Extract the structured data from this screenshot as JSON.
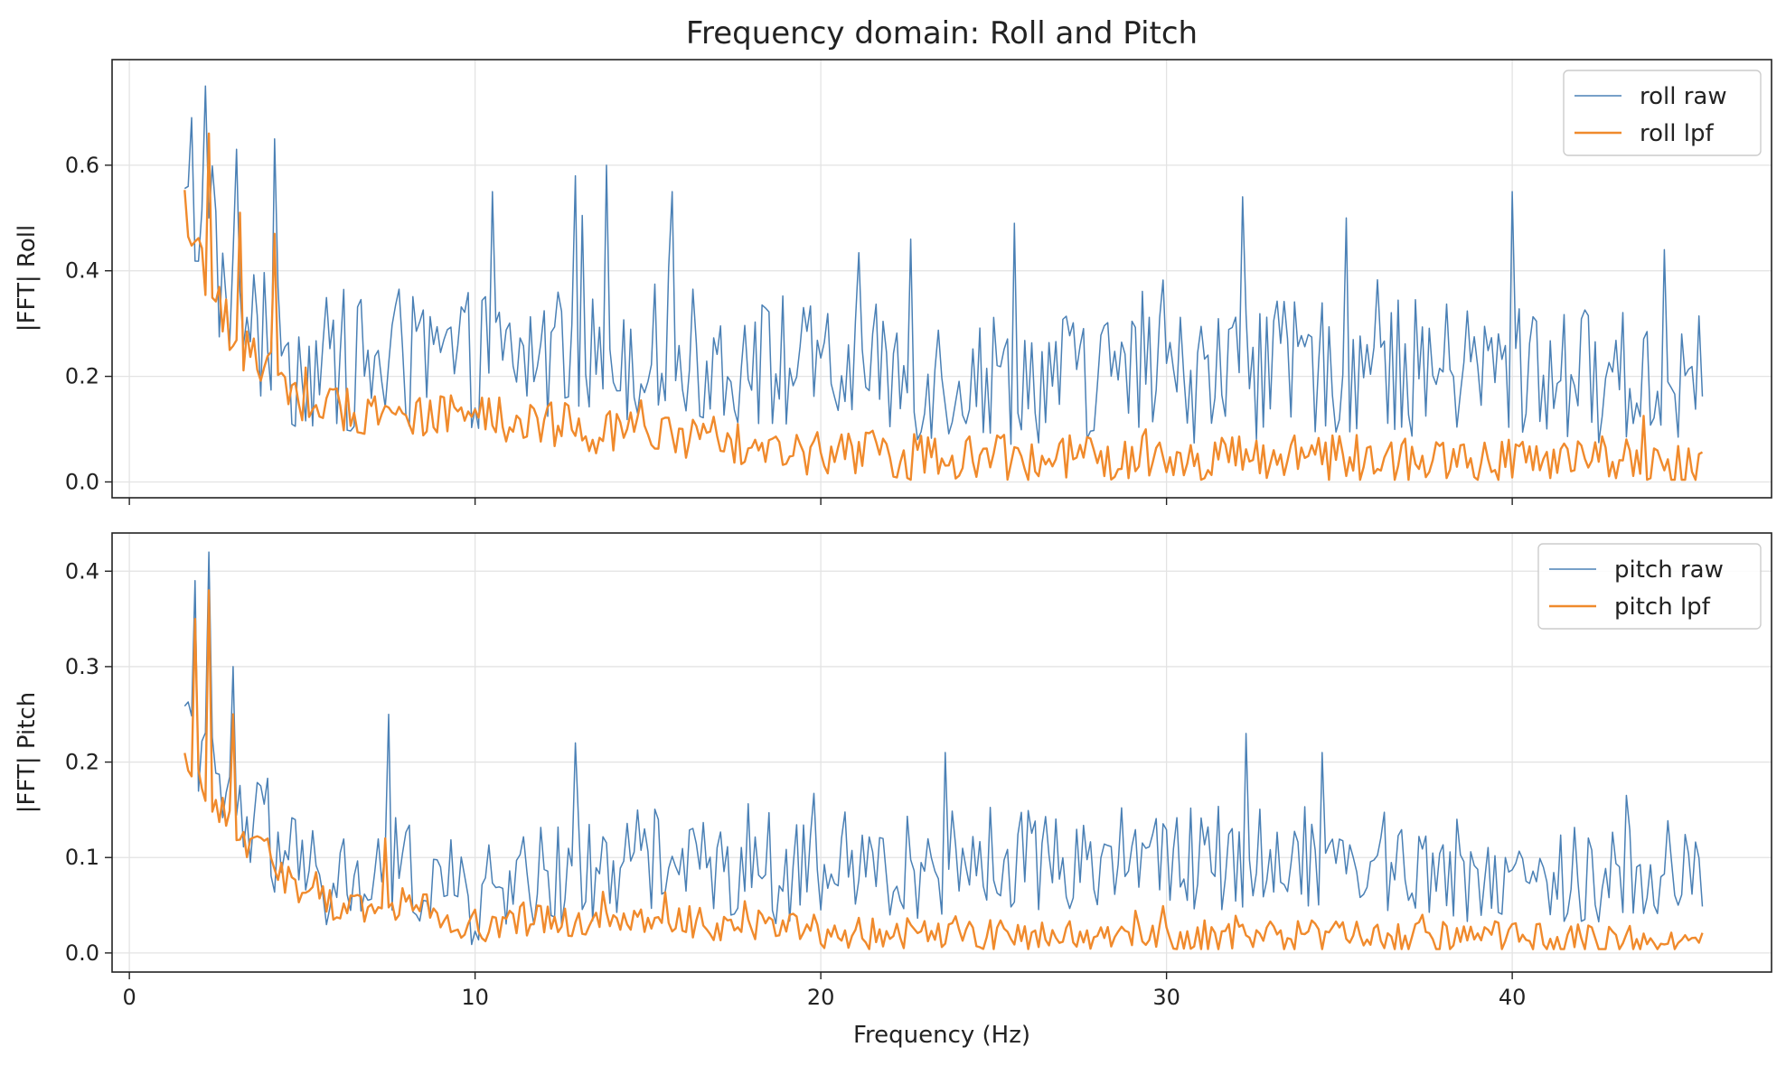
{
  "chart_data": [
    {
      "type": "line",
      "title": "Frequency domain: Roll and Pitch",
      "xlabel": "",
      "ylabel": "|FFT| Roll",
      "xlim": [
        -0.5,
        47.5
      ],
      "ylim": [
        -0.03,
        0.8
      ],
      "x_ticks": [
        0,
        10,
        20,
        30,
        40
      ],
      "y_ticks": [
        0.0,
        0.2,
        0.4,
        0.6
      ],
      "grid": true,
      "legend_position": "top-right",
      "x_start": 1.6,
      "x_end": 45.5,
      "x_step": 0.1,
      "series": [
        {
          "name": "roll raw",
          "color": "#4a80b5",
          "envelope_x": [
            1.6,
            2.0,
            2.5,
            3.0,
            3.5,
            4.0,
            4.5,
            5.0,
            6.0,
            8.0,
            10.0,
            15.0,
            20.0,
            25.0,
            30.0,
            35.0,
            40.0,
            45.5
          ],
          "envelope_y": [
            0.5,
            0.48,
            0.4,
            0.33,
            0.3,
            0.26,
            0.24,
            0.22,
            0.22,
            0.22,
            0.23,
            0.25,
            0.21,
            0.2,
            0.2,
            0.22,
            0.21,
            0.19
          ],
          "variation": 0.13,
          "peaks": [
            [
              1.8,
              0.69
            ],
            [
              2.2,
              0.75
            ],
            [
              3.1,
              0.63
            ],
            [
              4.2,
              0.65
            ],
            [
              10.5,
              0.55
            ],
            [
              12.9,
              0.58
            ],
            [
              13.8,
              0.6
            ],
            [
              15.7,
              0.55
            ],
            [
              22.6,
              0.46
            ],
            [
              25.6,
              0.49
            ],
            [
              32.2,
              0.54
            ],
            [
              35.2,
              0.5
            ],
            [
              40.0,
              0.55
            ],
            [
              44.4,
              0.44
            ]
          ]
        },
        {
          "name": "roll lpf",
          "color": "#f08a2c",
          "envelope_x": [
            1.6,
            2.0,
            2.5,
            3.0,
            3.5,
            4.0,
            4.5,
            5.0,
            6.0,
            8.0,
            10.0,
            15.0,
            20.0,
            25.0,
            30.0,
            35.0,
            40.0,
            45.5
          ],
          "envelope_y": [
            0.48,
            0.42,
            0.34,
            0.28,
            0.24,
            0.22,
            0.19,
            0.16,
            0.14,
            0.13,
            0.12,
            0.09,
            0.05,
            0.045,
            0.045,
            0.045,
            0.04,
            0.035
          ],
          "variation": 0.045,
          "peaks": [
            [
              2.3,
              0.66
            ],
            [
              3.2,
              0.51
            ],
            [
              4.2,
              0.47
            ]
          ]
        }
      ]
    },
    {
      "type": "line",
      "title": "",
      "xlabel": "Frequency (Hz)",
      "ylabel": "|FFT| Pitch",
      "xlim": [
        -0.5,
        47.5
      ],
      "ylim": [
        -0.02,
        0.44
      ],
      "x_ticks": [
        0,
        10,
        20,
        30,
        40
      ],
      "y_ticks": [
        0.0,
        0.1,
        0.2,
        0.3,
        0.4
      ],
      "grid": true,
      "legend_position": "top-right",
      "x_start": 1.6,
      "x_end": 45.5,
      "x_step": 0.1,
      "series": [
        {
          "name": "pitch raw",
          "color": "#4a80b5",
          "envelope_x": [
            1.6,
            2.0,
            2.5,
            3.0,
            3.5,
            4.0,
            4.5,
            5.0,
            6.0,
            8.0,
            9.5,
            10.0,
            15.0,
            20.0,
            25.0,
            30.0,
            35.0,
            40.0,
            45.5
          ],
          "envelope_y": [
            0.22,
            0.2,
            0.17,
            0.15,
            0.13,
            0.12,
            0.1,
            0.08,
            0.07,
            0.09,
            0.06,
            0.06,
            0.1,
            0.08,
            0.1,
            0.1,
            0.1,
            0.08,
            0.08
          ],
          "variation": 0.055,
          "peaks": [
            [
              1.9,
              0.39
            ],
            [
              2.3,
              0.42
            ],
            [
              3.0,
              0.3
            ],
            [
              7.5,
              0.25
            ],
            [
              12.9,
              0.22
            ],
            [
              23.6,
              0.21
            ],
            [
              32.3,
              0.23
            ],
            [
              34.5,
              0.21
            ]
          ]
        },
        {
          "name": "pitch lpf",
          "color": "#f08a2c",
          "envelope_x": [
            1.6,
            2.0,
            2.5,
            3.0,
            3.5,
            4.0,
            4.5,
            5.0,
            6.0,
            8.0,
            10.0,
            15.0,
            20.0,
            25.0,
            30.0,
            35.0,
            40.0,
            45.5
          ],
          "envelope_y": [
            0.2,
            0.18,
            0.15,
            0.13,
            0.11,
            0.1,
            0.08,
            0.06,
            0.05,
            0.05,
            0.03,
            0.035,
            0.022,
            0.02,
            0.018,
            0.018,
            0.015,
            0.012
          ],
          "variation": 0.018,
          "peaks": [
            [
              1.9,
              0.35
            ],
            [
              2.3,
              0.38
            ],
            [
              3.0,
              0.25
            ],
            [
              7.4,
              0.12
            ]
          ]
        }
      ]
    }
  ]
}
